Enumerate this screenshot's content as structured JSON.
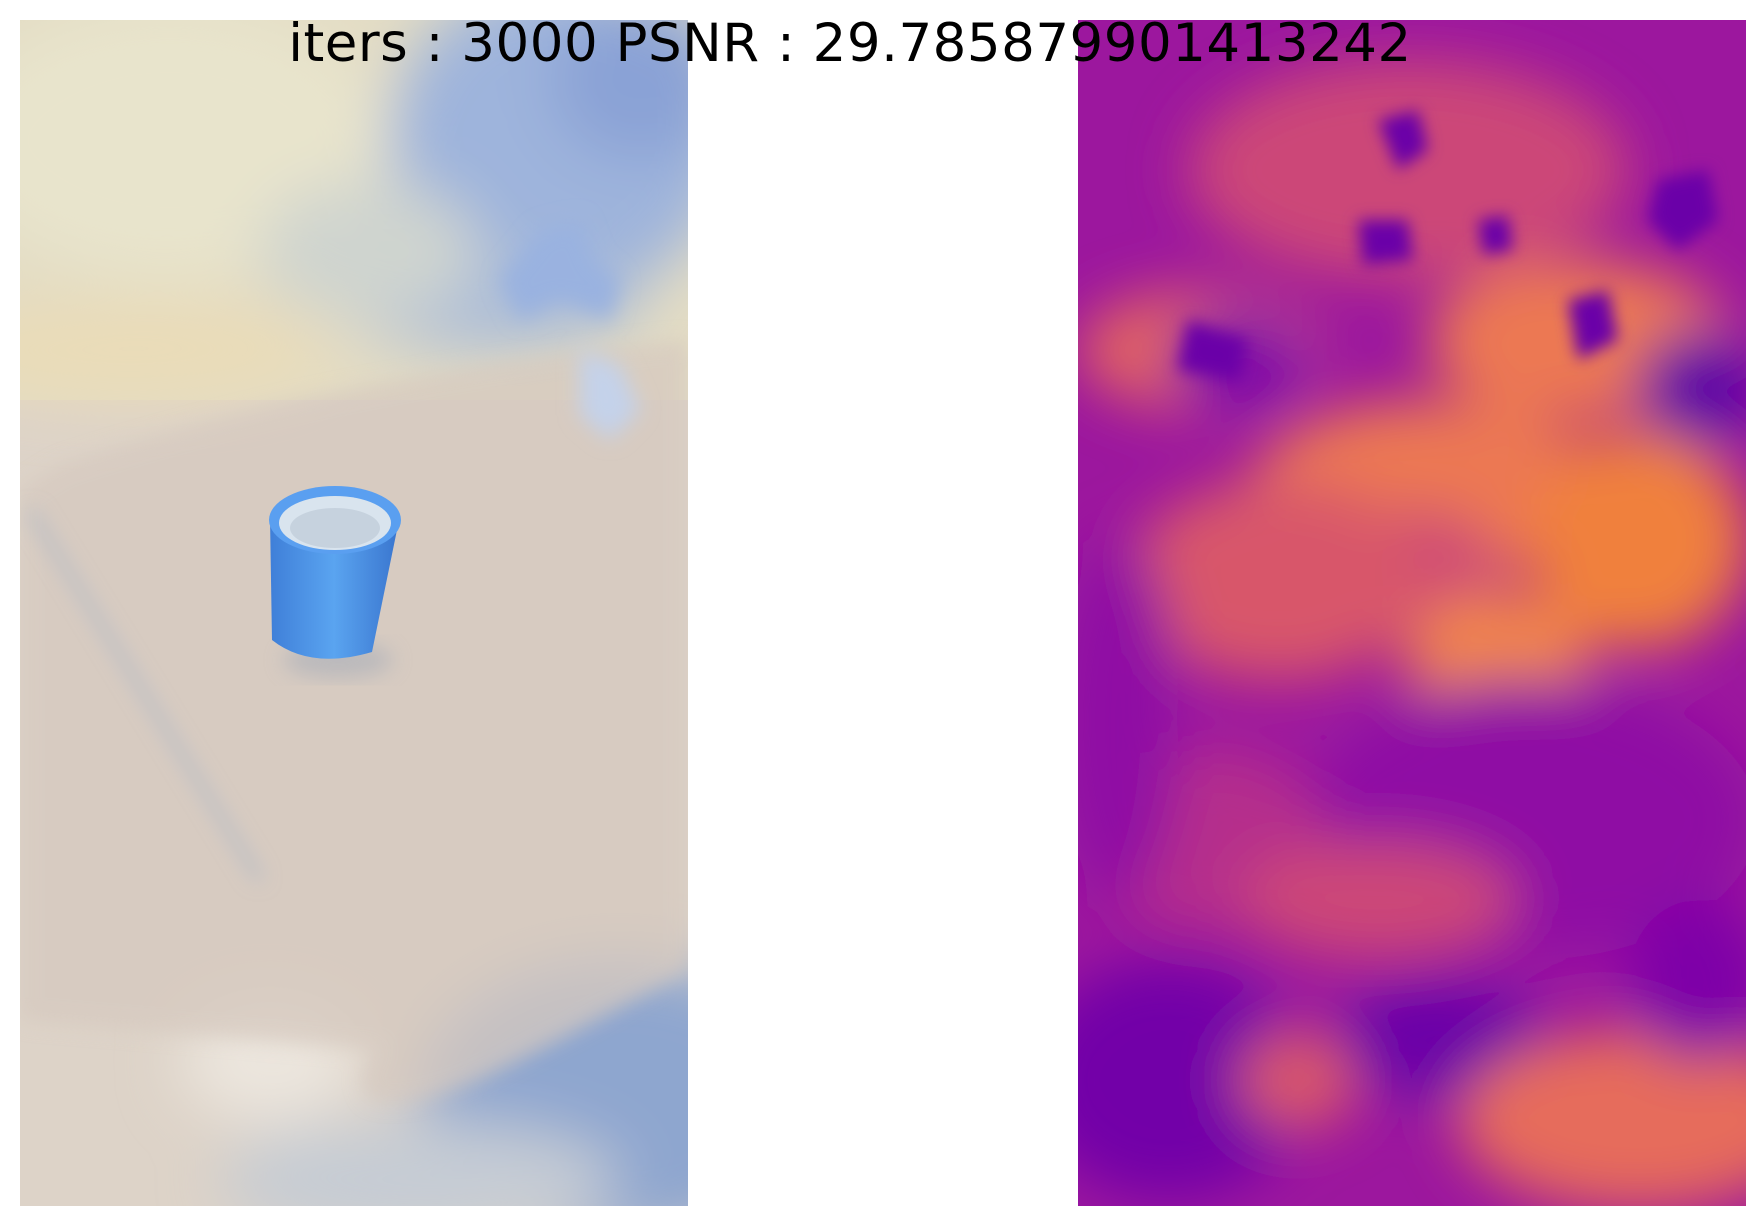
{
  "figure": {
    "title": "iters : 3000 PSNR : 29.785879901413242",
    "panels": [
      {
        "kind": "rendered-rgb",
        "subject": "blue-cup-on-table"
      },
      {
        "kind": "depth-map",
        "colormap": "plasma"
      }
    ]
  },
  "colors": {
    "background": "#ffffff",
    "rgb_base": "#ddd3c8",
    "rgb_wall": "#e6e0c6",
    "rgb_blue_patch": "#8fa8d8",
    "cup_blue": "#4a8fe6",
    "depth_low": "#6a00a8",
    "depth_mid": "#b12a90",
    "depth_high": "#f0803c"
  }
}
